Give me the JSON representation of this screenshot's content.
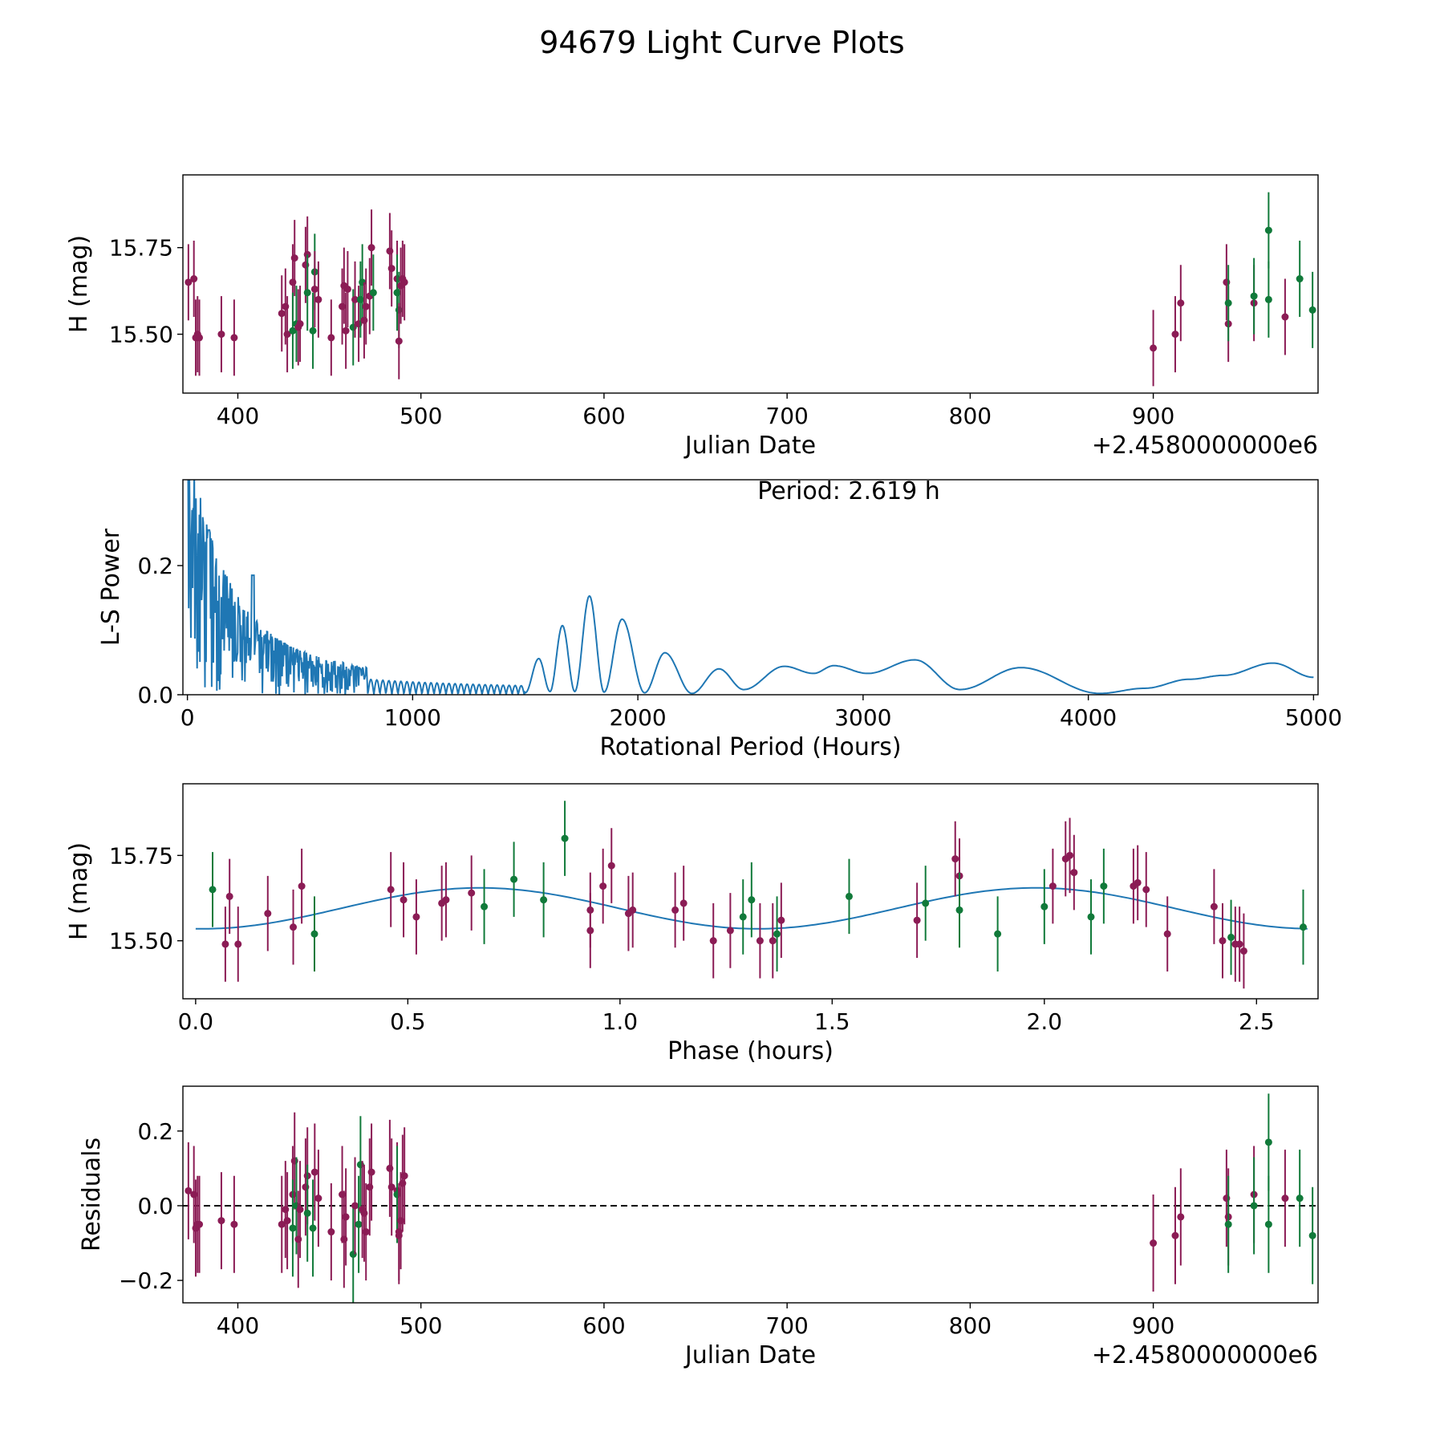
{
  "title": "94679 Light Curve Plots",
  "colors": {
    "maroon": "#8b1c55",
    "green": "#117a3a",
    "blue": "#1f77b4"
  },
  "chart_data": [
    {
      "id": "lightcurve",
      "type": "scatter",
      "xlabel": "Julian Date",
      "ylabel": "H (mag)",
      "offset_text": "+2.4580000000e6",
      "xlim": [
        370,
        990
      ],
      "ylim": [
        15.33,
        15.96
      ],
      "xticks": [
        400,
        500,
        600,
        700,
        800,
        900
      ],
      "xtick_labels": [
        "400",
        "500",
        "600",
        "700",
        "800",
        "900"
      ],
      "yticks": [
        15.5,
        15.75
      ],
      "ytick_labels": [
        "15.50",
        "15.75"
      ],
      "err_default": 0.11,
      "points": [
        [
          373,
          15.65,
          "m"
        ],
        [
          376,
          15.66,
          "m"
        ],
        [
          377,
          15.49,
          "m"
        ],
        [
          378,
          15.5,
          "m"
        ],
        [
          379,
          15.49,
          "m"
        ],
        [
          391,
          15.5,
          "m"
        ],
        [
          398,
          15.49,
          "m"
        ],
        [
          424,
          15.56,
          "m"
        ],
        [
          426,
          15.58,
          "m"
        ],
        [
          427,
          15.5,
          "m"
        ],
        [
          430,
          15.65,
          "m"
        ],
        [
          430,
          15.51,
          "g"
        ],
        [
          431,
          15.72,
          "m"
        ],
        [
          432,
          15.53,
          "g"
        ],
        [
          433,
          15.52,
          "m"
        ],
        [
          434,
          15.53,
          "m"
        ],
        [
          437,
          15.7,
          "m"
        ],
        [
          438,
          15.73,
          "m"
        ],
        [
          438,
          15.62,
          "g"
        ],
        [
          441,
          15.51,
          "g"
        ],
        [
          442,
          15.68,
          "g"
        ],
        [
          442,
          15.63,
          "m"
        ],
        [
          444,
          15.6,
          "m"
        ],
        [
          451,
          15.49,
          "m"
        ],
        [
          457,
          15.58,
          "m"
        ],
        [
          458,
          15.64,
          "m"
        ],
        [
          459,
          15.51,
          "m"
        ],
        [
          460,
          15.63,
          "m"
        ],
        [
          463,
          15.52,
          "g"
        ],
        [
          464,
          15.6,
          "m"
        ],
        [
          466,
          15.53,
          "m"
        ],
        [
          467,
          15.6,
          "g"
        ],
        [
          468,
          15.65,
          "g"
        ],
        [
          469,
          15.54,
          "m"
        ],
        [
          470,
          15.58,
          "m"
        ],
        [
          472,
          15.61,
          "m"
        ],
        [
          473,
          15.75,
          "m"
        ],
        [
          474,
          15.62,
          "g"
        ],
        [
          483,
          15.74,
          "m"
        ],
        [
          484,
          15.69,
          "m"
        ],
        [
          487,
          15.66,
          "m"
        ],
        [
          487,
          15.62,
          "g"
        ],
        [
          488,
          15.57,
          "g"
        ],
        [
          488,
          15.48,
          "m"
        ],
        [
          489,
          15.64,
          "m"
        ],
        [
          490,
          15.66,
          "m"
        ],
        [
          491,
          15.65,
          "m"
        ],
        [
          900,
          15.46,
          "m"
        ],
        [
          912,
          15.5,
          "m"
        ],
        [
          915,
          15.59,
          "m"
        ],
        [
          940,
          15.65,
          "m"
        ],
        [
          941,
          15.53,
          "m"
        ],
        [
          941,
          15.59,
          "g"
        ],
        [
          955,
          15.59,
          "m"
        ],
        [
          955,
          15.61,
          "g"
        ],
        [
          963,
          15.8,
          "g"
        ],
        [
          963,
          15.6,
          "g"
        ],
        [
          972,
          15.55,
          "m"
        ],
        [
          980,
          15.66,
          "g"
        ],
        [
          987,
          15.57,
          "g"
        ]
      ]
    },
    {
      "id": "periodogram",
      "type": "line",
      "xlabel": "Rotational Period (Hours)",
      "ylabel": "L-S Power",
      "annotation": "Period: 2.619 h",
      "xlim": [
        -20,
        5020
      ],
      "ylim": [
        0,
        0.333
      ],
      "xticks": [
        0,
        1000,
        2000,
        3000,
        4000,
        5000
      ],
      "xtick_labels": [
        "0",
        "1000",
        "2000",
        "3000",
        "4000",
        "5000"
      ],
      "yticks": [
        0,
        0.2
      ],
      "ytick_labels": [
        "0.0",
        "0.2"
      ],
      "peaks": [
        [
          1500,
          0.003
        ],
        [
          1560,
          0.056
        ],
        [
          1610,
          0.005
        ],
        [
          1665,
          0.107
        ],
        [
          1720,
          0.005
        ],
        [
          1785,
          0.153
        ],
        [
          1850,
          0.004
        ],
        [
          1930,
          0.117
        ],
        [
          2030,
          0.003
        ],
        [
          2120,
          0.065
        ],
        [
          2240,
          0.002
        ],
        [
          2360,
          0.04
        ],
        [
          2470,
          0.008
        ],
        [
          2650,
          0.044
        ],
        [
          2780,
          0.033
        ],
        [
          2870,
          0.045
        ],
        [
          3020,
          0.033
        ],
        [
          3230,
          0.054
        ],
        [
          3430,
          0.008
        ],
        [
          3700,
          0.042
        ],
        [
          4050,
          0.002
        ],
        [
          4250,
          0.01
        ],
        [
          4450,
          0.024
        ],
        [
          4600,
          0.03
        ],
        [
          4820,
          0.049
        ],
        [
          5000,
          0.027
        ]
      ]
    },
    {
      "id": "phased",
      "type": "scatter",
      "xlabel": "Phase (hours)",
      "ylabel": "H (mag)",
      "xlim": [
        -0.03,
        2.645
      ],
      "ylim": [
        15.33,
        15.96
      ],
      "xticks": [
        0,
        0.5,
        1,
        1.5,
        2,
        2.5
      ],
      "xtick_labels": [
        "0.0",
        "0.5",
        "1.0",
        "1.5",
        "2.0",
        "2.5"
      ],
      "yticks": [
        15.5,
        15.75
      ],
      "ytick_labels": [
        "15.50",
        "15.75"
      ],
      "err_default": 0.11,
      "model": {
        "period": 2.619,
        "mean": 15.595,
        "amplitude": 0.06,
        "phase_peak": 0.67
      },
      "points": [
        [
          0.04,
          15.65,
          "g"
        ],
        [
          0.07,
          15.49,
          "m"
        ],
        [
          0.08,
          15.63,
          "m"
        ],
        [
          0.1,
          15.49,
          "m"
        ],
        [
          0.17,
          15.58,
          "m"
        ],
        [
          0.23,
          15.54,
          "m"
        ],
        [
          0.25,
          15.66,
          "m"
        ],
        [
          0.28,
          15.52,
          "g"
        ],
        [
          0.46,
          15.65,
          "m"
        ],
        [
          0.49,
          15.62,
          "m"
        ],
        [
          0.52,
          15.57,
          "m"
        ],
        [
          0.58,
          15.61,
          "m"
        ],
        [
          0.59,
          15.62,
          "m"
        ],
        [
          0.65,
          15.64,
          "m"
        ],
        [
          0.68,
          15.6,
          "g"
        ],
        [
          0.75,
          15.68,
          "g"
        ],
        [
          0.82,
          15.62,
          "g"
        ],
        [
          0.87,
          15.8,
          "g"
        ],
        [
          0.93,
          15.59,
          "m"
        ],
        [
          0.93,
          15.53,
          "m"
        ],
        [
          0.96,
          15.66,
          "m"
        ],
        [
          0.98,
          15.72,
          "m"
        ],
        [
          1.02,
          15.58,
          "m"
        ],
        [
          1.03,
          15.59,
          "m"
        ],
        [
          1.13,
          15.59,
          "m"
        ],
        [
          1.15,
          15.61,
          "m"
        ],
        [
          1.22,
          15.5,
          "m"
        ],
        [
          1.26,
          15.53,
          "m"
        ],
        [
          1.29,
          15.57,
          "g"
        ],
        [
          1.31,
          15.62,
          "g"
        ],
        [
          1.33,
          15.5,
          "m"
        ],
        [
          1.36,
          15.5,
          "m"
        ],
        [
          1.37,
          15.52,
          "g"
        ],
        [
          1.38,
          15.56,
          "m"
        ],
        [
          1.54,
          15.63,
          "g"
        ],
        [
          1.7,
          15.56,
          "m"
        ],
        [
          1.72,
          15.61,
          "g"
        ],
        [
          1.79,
          15.74,
          "m"
        ],
        [
          1.8,
          15.69,
          "m"
        ],
        [
          1.8,
          15.59,
          "g"
        ],
        [
          1.89,
          15.52,
          "g"
        ],
        [
          2.0,
          15.6,
          "g"
        ],
        [
          2.02,
          15.66,
          "m"
        ],
        [
          2.05,
          15.74,
          "m"
        ],
        [
          2.06,
          15.75,
          "m"
        ],
        [
          2.07,
          15.7,
          "m"
        ],
        [
          2.11,
          15.57,
          "g"
        ],
        [
          2.14,
          15.66,
          "g"
        ],
        [
          2.21,
          15.66,
          "m"
        ],
        [
          2.22,
          15.67,
          "m"
        ],
        [
          2.24,
          15.65,
          "m"
        ],
        [
          2.29,
          15.52,
          "m"
        ],
        [
          2.4,
          15.6,
          "m"
        ],
        [
          2.42,
          15.5,
          "m"
        ],
        [
          2.44,
          15.51,
          "g"
        ],
        [
          2.45,
          15.49,
          "m"
        ],
        [
          2.46,
          15.49,
          "m"
        ],
        [
          2.47,
          15.47,
          "m"
        ],
        [
          2.61,
          15.54,
          "g"
        ]
      ]
    },
    {
      "id": "residuals",
      "type": "scatter",
      "xlabel": "Julian Date",
      "ylabel": "Residuals",
      "offset_text": "+2.4580000000e6",
      "xlim": [
        370,
        990
      ],
      "ylim": [
        -0.26,
        0.32
      ],
      "xticks": [
        400,
        500,
        600,
        700,
        800,
        900
      ],
      "xtick_labels": [
        "400",
        "500",
        "600",
        "700",
        "800",
        "900"
      ],
      "yticks": [
        -0.2,
        0,
        0.2
      ],
      "ytick_labels": [
        "−0.2",
        "0.0",
        "0.2"
      ],
      "zero_line": true,
      "err_default": 0.13,
      "points": [
        [
          373,
          0.04,
          "m"
        ],
        [
          376,
          0.03,
          "m"
        ],
        [
          377,
          -0.06,
          "m"
        ],
        [
          378,
          -0.05,
          "m"
        ],
        [
          379,
          -0.05,
          "m"
        ],
        [
          391,
          -0.04,
          "m"
        ],
        [
          398,
          -0.05,
          "m"
        ],
        [
          424,
          -0.05,
          "m"
        ],
        [
          426,
          -0.01,
          "m"
        ],
        [
          427,
          -0.04,
          "m"
        ],
        [
          430,
          0.03,
          "m"
        ],
        [
          430,
          -0.06,
          "g"
        ],
        [
          431,
          0.12,
          "m"
        ],
        [
          432,
          0.0,
          "g"
        ],
        [
          433,
          -0.09,
          "m"
        ],
        [
          434,
          -0.01,
          "m"
        ],
        [
          437,
          0.05,
          "m"
        ],
        [
          438,
          0.08,
          "m"
        ],
        [
          438,
          -0.02,
          "g"
        ],
        [
          441,
          -0.06,
          "g"
        ],
        [
          442,
          0.09,
          "m"
        ],
        [
          444,
          0.02,
          "m"
        ],
        [
          451,
          -0.07,
          "m"
        ],
        [
          457,
          0.03,
          "m"
        ],
        [
          458,
          -0.09,
          "m"
        ],
        [
          459,
          -0.03,
          "m"
        ],
        [
          463,
          -0.13,
          "g"
        ],
        [
          464,
          0.0,
          "m"
        ],
        [
          466,
          -0.05,
          "g"
        ],
        [
          467,
          0.11,
          "g"
        ],
        [
          468,
          -0.01,
          "m"
        ],
        [
          469,
          -0.02,
          "m"
        ],
        [
          470,
          -0.07,
          "m"
        ],
        [
          472,
          0.05,
          "m"
        ],
        [
          473,
          0.09,
          "m"
        ],
        [
          483,
          0.1,
          "m"
        ],
        [
          484,
          0.05,
          "m"
        ],
        [
          487,
          0.04,
          "m"
        ],
        [
          487,
          0.03,
          "g"
        ],
        [
          488,
          -0.07,
          "m"
        ],
        [
          488,
          -0.08,
          "m"
        ],
        [
          489,
          -0.04,
          "m"
        ],
        [
          490,
          0.06,
          "m"
        ],
        [
          491,
          0.08,
          "m"
        ],
        [
          900,
          -0.1,
          "m"
        ],
        [
          912,
          -0.08,
          "m"
        ],
        [
          915,
          -0.03,
          "m"
        ],
        [
          940,
          0.02,
          "m"
        ],
        [
          941,
          -0.03,
          "m"
        ],
        [
          941,
          -0.05,
          "g"
        ],
        [
          955,
          0.03,
          "m"
        ],
        [
          955,
          0.0,
          "g"
        ],
        [
          963,
          0.17,
          "g"
        ],
        [
          963,
          -0.05,
          "g"
        ],
        [
          972,
          0.02,
          "m"
        ],
        [
          980,
          0.02,
          "g"
        ],
        [
          987,
          -0.08,
          "g"
        ]
      ]
    }
  ]
}
